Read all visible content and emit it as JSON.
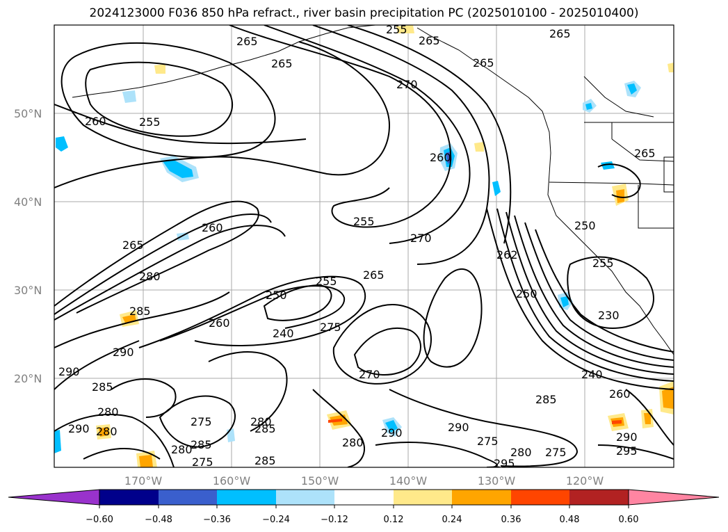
{
  "title": "2024123000 F036 850 hPa refract., river basin precipitation PC (2025010100 - 2025010400)",
  "map": {
    "latitude_labels": [
      "50°N",
      "40°N",
      "30°N",
      "20°N"
    ],
    "longitude_labels": [
      "170°W",
      "160°W",
      "150°W",
      "140°W",
      "130°W",
      "120°W"
    ],
    "grid": true,
    "contour_labels": [
      "265",
      "265",
      "255",
      "265",
      "270",
      "265",
      "260",
      "255",
      "260",
      "265",
      "260",
      "270",
      "255",
      "265",
      "280",
      "255",
      "250",
      "265",
      "262",
      "285",
      "240",
      "275",
      "250",
      "230",
      "260",
      "290",
      "270",
      "240",
      "285",
      "290",
      "285",
      "280",
      "260",
      "275",
      "280",
      "280",
      "290",
      "290",
      "285",
      "285",
      "290",
      "290",
      "295",
      "280",
      "285",
      "275",
      "275",
      "280",
      "275",
      "295",
      "280",
      "250",
      "255",
      "265"
    ]
  },
  "colorbar": {
    "ticks": [
      "−0.60",
      "−0.48",
      "−0.36",
      "−0.24",
      "−0.12",
      "0.12",
      "0.24",
      "0.36",
      "0.48",
      "0.60"
    ],
    "colors": [
      "#9932CC",
      "#00008B",
      "#3A5FCD",
      "#00BFFF",
      "#ADE2FA",
      "#FFFFFF",
      "#FFE98A",
      "#FFA500",
      "#FF4500",
      "#B22222",
      "#FF85A2",
      "#FF85A2"
    ]
  }
}
